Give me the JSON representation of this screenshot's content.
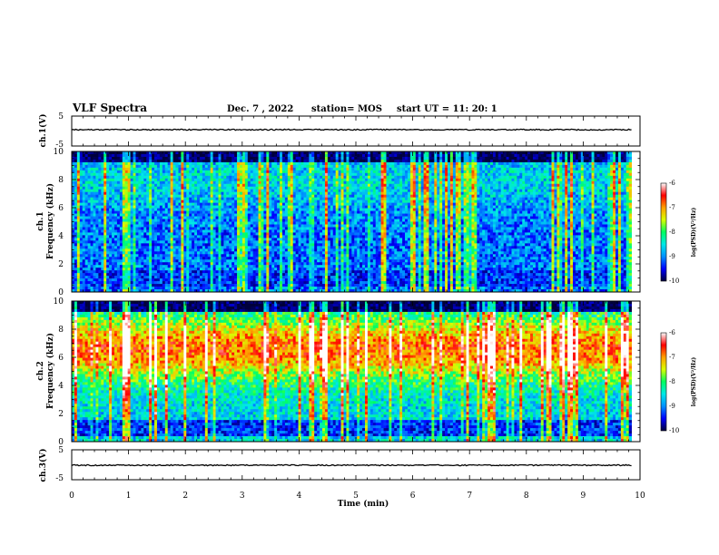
{
  "header": {
    "title": "VLF Spectra",
    "date": "Dec. 7 , 2022",
    "station": "station= MOS",
    "start": "start  UT =    11: 20: 1"
  },
  "chart_data": {
    "type": "heatmap",
    "title": "VLF Spectra",
    "xlabel": "Time  (min)",
    "xlim": [
      0,
      10
    ],
    "xticks": [
      "0",
      "1",
      "2",
      "3",
      "4",
      "5",
      "6",
      "7",
      "8",
      "9",
      "10"
    ],
    "colorbar": {
      "label": "log(PSD)(V²/Hz)",
      "range": [
        -10,
        -6
      ],
      "ticks": [
        "-6",
        "-7",
        "-8",
        "-9",
        "-10"
      ],
      "colors": [
        "#00003c",
        "#0000ff",
        "#0090ff",
        "#00e8e8",
        "#00ff60",
        "#d8ff00",
        "#ffa000",
        "#ff0000",
        "#ffffff"
      ]
    },
    "panels": [
      {
        "name": "ch.1(V)",
        "kind": "waveform",
        "ylabel": "ch.1(V)",
        "ylim": [
          -5,
          5
        ],
        "yticks": [
          "5",
          "-5"
        ]
      },
      {
        "name": "ch.1",
        "kind": "spectrogram",
        "ylabel_channel": "ch.1",
        "ylabel": "Frequency  (kHz)",
        "ylim": [
          0,
          10
        ],
        "yticks": [
          "0",
          "2",
          "4",
          "6",
          "8",
          "10"
        ],
        "data_time_max": 9.85,
        "base_level": -9.1,
        "band_top_level": -8.6,
        "band_peak_khz": 8.0
      },
      {
        "name": "ch.2",
        "kind": "spectrogram",
        "ylabel_channel": "ch.2",
        "ylabel": "Frequency  (kHz)",
        "ylim": [
          0,
          10
        ],
        "yticks": [
          "0",
          "2",
          "4",
          "6",
          "8",
          "10"
        ],
        "data_time_max": 9.85,
        "base_level": -8.6,
        "band_top_level": -6.8,
        "band_peak_khz": 6.6
      },
      {
        "name": "ch.3(V)",
        "kind": "waveform",
        "ylabel": "ch.3(V)",
        "ylim": [
          -5,
          5
        ],
        "yticks": [
          "5",
          "-5"
        ]
      }
    ]
  }
}
